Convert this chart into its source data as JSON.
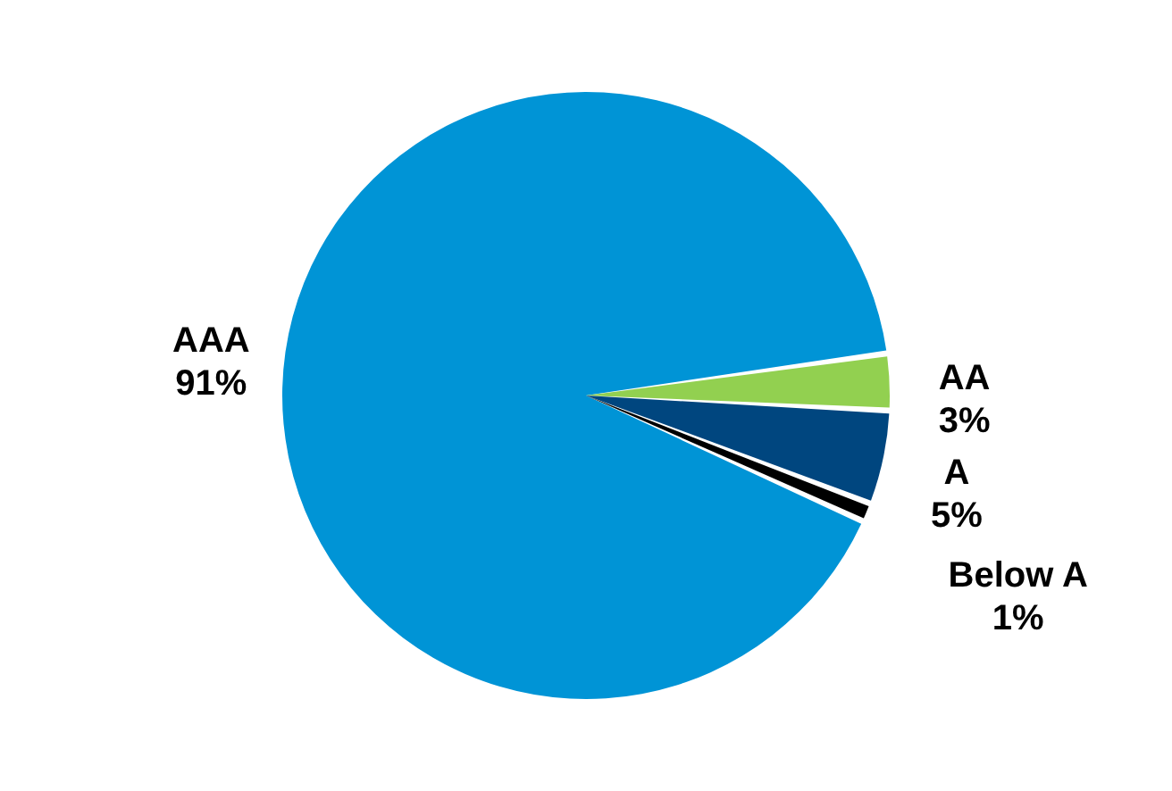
{
  "chart_data": {
    "type": "pie",
    "categories": [
      "AAA",
      "AA",
      "A",
      "Below A"
    ],
    "values": [
      91,
      3,
      5,
      1
    ],
    "value_labels": [
      "91%",
      "3%",
      "5%",
      "1%"
    ],
    "colors": [
      "#0094d6",
      "#92d050",
      "#00467f",
      "#000000"
    ],
    "legend": false
  }
}
